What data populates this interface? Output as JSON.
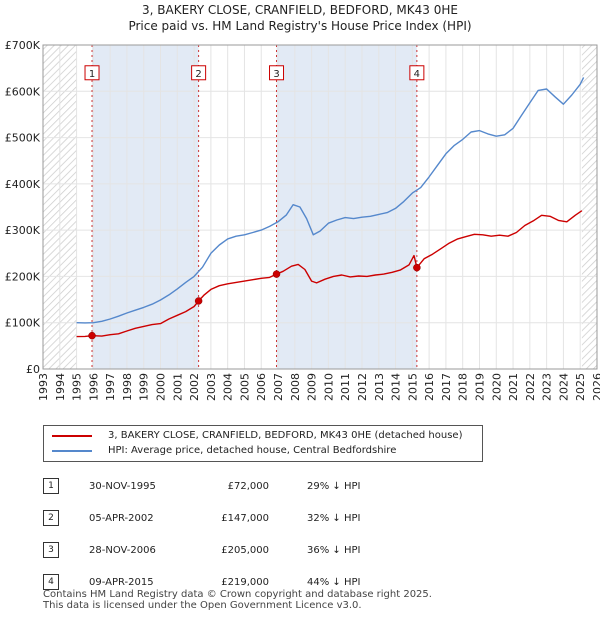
{
  "title_line1": "3, BAKERY CLOSE, CRANFIELD, BEDFORD, MK43 0HE",
  "title_line2": "Price paid vs. HM Land Registry's House Price Index (HPI)",
  "chart_data": {
    "type": "line",
    "title": "3, BAKERY CLOSE, CRANFIELD, BEDFORD, MK43 0HE",
    "subtitle": "Price paid vs. HM Land Registry's House Price Index (HPI)",
    "xlabel": "",
    "ylabel": "",
    "xlim": [
      1993,
      2026
    ],
    "ylim": [
      0,
      700000
    ],
    "x_ticks": [
      1993,
      1994,
      1995,
      1996,
      1997,
      1998,
      1999,
      2000,
      2001,
      2002,
      2003,
      2004,
      2005,
      2006,
      2007,
      2008,
      2009,
      2010,
      2011,
      2012,
      2013,
      2014,
      2015,
      2016,
      2017,
      2018,
      2019,
      2020,
      2021,
      2022,
      2023,
      2024,
      2025,
      2026
    ],
    "y_ticks": [
      0,
      100000,
      200000,
      300000,
      400000,
      500000,
      600000,
      700000
    ],
    "y_tick_labels": [
      "£0",
      "£100K",
      "£200K",
      "£300K",
      "£400K",
      "£500K",
      "£600K",
      "£700K"
    ],
    "grid": true,
    "hatched_ranges": [
      [
        1993,
        1995.0
      ],
      [
        2025.1,
        2026
      ]
    ],
    "series": [
      {
        "name": "3, BAKERY CLOSE, CRANFIELD, BEDFORD, MK43 0HE (detached house)",
        "color": "#cc0000",
        "points": [
          [
            1995.0,
            70000
          ],
          [
            1995.5,
            70500
          ],
          [
            1995.92,
            72000
          ],
          [
            1996.5,
            71000
          ],
          [
            1997.0,
            74000
          ],
          [
            1997.5,
            76000
          ],
          [
            1998.0,
            82000
          ],
          [
            1998.5,
            88000
          ],
          [
            1999.0,
            92000
          ],
          [
            1999.5,
            96000
          ],
          [
            2000.0,
            98000
          ],
          [
            2000.5,
            108000
          ],
          [
            2001.0,
            116000
          ],
          [
            2001.5,
            124000
          ],
          [
            2002.0,
            135000
          ],
          [
            2002.27,
            147000
          ],
          [
            2002.6,
            160000
          ],
          [
            2003.0,
            172000
          ],
          [
            2003.5,
            180000
          ],
          [
            2004.0,
            184000
          ],
          [
            2004.5,
            187000
          ],
          [
            2005.0,
            190000
          ],
          [
            2005.5,
            193000
          ],
          [
            2006.0,
            196000
          ],
          [
            2006.5,
            198000
          ],
          [
            2006.91,
            205000
          ],
          [
            2007.3,
            211000
          ],
          [
            2007.8,
            222000
          ],
          [
            2008.2,
            226000
          ],
          [
            2008.6,
            215000
          ],
          [
            2009.0,
            190000
          ],
          [
            2009.3,
            186000
          ],
          [
            2009.8,
            194000
          ],
          [
            2010.3,
            200000
          ],
          [
            2010.8,
            203000
          ],
          [
            2011.3,
            199000
          ],
          [
            2011.8,
            201000
          ],
          [
            2012.3,
            200000
          ],
          [
            2012.8,
            203000
          ],
          [
            2013.3,
            205000
          ],
          [
            2013.8,
            209000
          ],
          [
            2014.3,
            214000
          ],
          [
            2014.8,
            225000
          ],
          [
            2015.1,
            245000
          ],
          [
            2015.27,
            219000
          ],
          [
            2015.7,
            238000
          ],
          [
            2016.2,
            248000
          ],
          [
            2016.7,
            260000
          ],
          [
            2017.2,
            272000
          ],
          [
            2017.7,
            281000
          ],
          [
            2018.2,
            286000
          ],
          [
            2018.7,
            291000
          ],
          [
            2019.2,
            290000
          ],
          [
            2019.7,
            287000
          ],
          [
            2020.2,
            289000
          ],
          [
            2020.7,
            287000
          ],
          [
            2021.2,
            295000
          ],
          [
            2021.7,
            310000
          ],
          [
            2022.2,
            320000
          ],
          [
            2022.7,
            332000
          ],
          [
            2023.2,
            330000
          ],
          [
            2023.7,
            321000
          ],
          [
            2024.2,
            318000
          ],
          [
            2024.7,
            332000
          ],
          [
            2025.1,
            342000
          ]
        ]
      },
      {
        "name": "HPI: Average price, detached house, Central Bedfordshire",
        "color": "#5588cc",
        "points": [
          [
            1995.0,
            100000
          ],
          [
            1995.5,
            99500
          ],
          [
            1996.0,
            100000
          ],
          [
            1996.5,
            103000
          ],
          [
            1997.0,
            108000
          ],
          [
            1997.5,
            114000
          ],
          [
            1998.0,
            121000
          ],
          [
            1998.5,
            127000
          ],
          [
            1999.0,
            133000
          ],
          [
            1999.5,
            140000
          ],
          [
            2000.0,
            149000
          ],
          [
            2000.5,
            160000
          ],
          [
            2001.0,
            173000
          ],
          [
            2001.5,
            187000
          ],
          [
            2002.0,
            200000
          ],
          [
            2002.5,
            220000
          ],
          [
            2003.0,
            250000
          ],
          [
            2003.5,
            268000
          ],
          [
            2004.0,
            281000
          ],
          [
            2004.5,
            287000
          ],
          [
            2005.0,
            290000
          ],
          [
            2005.5,
            295000
          ],
          [
            2006.0,
            300000
          ],
          [
            2006.5,
            308000
          ],
          [
            2007.0,
            318000
          ],
          [
            2007.5,
            333000
          ],
          [
            2007.9,
            355000
          ],
          [
            2008.3,
            350000
          ],
          [
            2008.7,
            325000
          ],
          [
            2009.1,
            290000
          ],
          [
            2009.5,
            298000
          ],
          [
            2010.0,
            315000
          ],
          [
            2010.5,
            322000
          ],
          [
            2011.0,
            327000
          ],
          [
            2011.5,
            325000
          ],
          [
            2012.0,
            328000
          ],
          [
            2012.5,
            330000
          ],
          [
            2013.0,
            334000
          ],
          [
            2013.5,
            338000
          ],
          [
            2014.0,
            347000
          ],
          [
            2014.5,
            362000
          ],
          [
            2015.0,
            380000
          ],
          [
            2015.5,
            392000
          ],
          [
            2016.0,
            415000
          ],
          [
            2016.5,
            440000
          ],
          [
            2017.0,
            465000
          ],
          [
            2017.5,
            483000
          ],
          [
            2018.0,
            496000
          ],
          [
            2018.5,
            512000
          ],
          [
            2019.0,
            515000
          ],
          [
            2019.5,
            508000
          ],
          [
            2020.0,
            503000
          ],
          [
            2020.5,
            506000
          ],
          [
            2021.0,
            520000
          ],
          [
            2021.5,
            548000
          ],
          [
            2022.0,
            575000
          ],
          [
            2022.5,
            602000
          ],
          [
            2023.0,
            605000
          ],
          [
            2023.5,
            588000
          ],
          [
            2024.0,
            572000
          ],
          [
            2024.5,
            592000
          ],
          [
            2025.0,
            615000
          ],
          [
            2025.2,
            630000
          ]
        ]
      }
    ],
    "annotations": [
      {
        "label": "1",
        "x": 1995.92,
        "y": 72000
      },
      {
        "label": "2",
        "x": 2002.27,
        "y": 147000
      },
      {
        "label": "3",
        "x": 2006.91,
        "y": 205000
      },
      {
        "label": "4",
        "x": 2015.27,
        "y": 219000
      }
    ],
    "marker_label_y": 640000
  },
  "legend": [
    {
      "label": "3, BAKERY CLOSE, CRANFIELD, BEDFORD, MK43 0HE (detached house)",
      "color": "#cc0000"
    },
    {
      "label": "HPI: Average price, detached house, Central Bedfordshire",
      "color": "#5588cc"
    }
  ],
  "sales": [
    {
      "num": "1",
      "date": "30-NOV-1995",
      "price": "£72,000",
      "hpi": "29% ↓ HPI"
    },
    {
      "num": "2",
      "date": "05-APR-2002",
      "price": "£147,000",
      "hpi": "32% ↓ HPI"
    },
    {
      "num": "3",
      "date": "28-NOV-2006",
      "price": "£205,000",
      "hpi": "36% ↓ HPI"
    },
    {
      "num": "4",
      "date": "09-APR-2015",
      "price": "£219,000",
      "hpi": "44% ↓ HPI"
    }
  ],
  "footer": {
    "line1": "Contains HM Land Registry data © Crown copyright and database right 2025.",
    "line2": "This data is licensed under the Open Government Licence v3.0."
  }
}
